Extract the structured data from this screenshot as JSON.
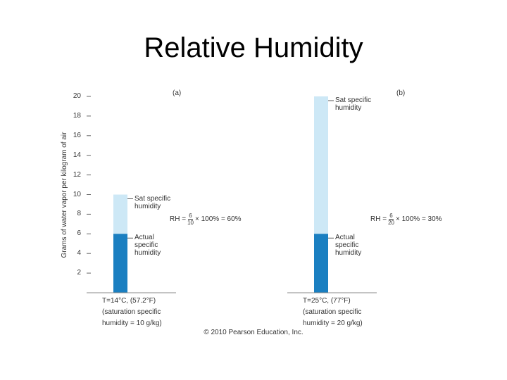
{
  "title": "Relative Humidity",
  "copyright": "© 2010 Pearson Education, Inc.",
  "chart_data": [
    {
      "type": "bar",
      "panel_label": "(a)",
      "ylabel": "Grams of water vapor per kilogram of air",
      "ylim": [
        0,
        20
      ],
      "yticks": [
        2,
        4,
        6,
        8,
        10,
        12,
        14,
        16,
        18,
        20
      ],
      "series": [
        {
          "name": "Sat specific humidity",
          "color": "#cde8f6",
          "values": [
            10
          ]
        },
        {
          "name": "Actual specific humidity",
          "color": "#1a7fc1",
          "values": [
            6
          ]
        }
      ],
      "caption": [
        "T=14°C, (57.2°F)",
        "(saturation specific",
        "humidity = 10 g/kg)"
      ],
      "rh": {
        "prefix": "RH =",
        "numerator": "6",
        "denominator": "10",
        "suffix": "× 100% = 60%"
      }
    },
    {
      "type": "bar",
      "panel_label": "(b)",
      "ylim": [
        0,
        20
      ],
      "series": [
        {
          "name": "Sat specific humidity",
          "color": "#cde8f6",
          "values": [
            20
          ]
        },
        {
          "name": "Actual specific humidity",
          "color": "#1a7fc1",
          "values": [
            6
          ]
        }
      ],
      "caption": [
        "T=25°C, (77°F)",
        "(saturation specific",
        "humidity = 20 g/kg)"
      ],
      "rh": {
        "prefix": "RH =",
        "numerator": "6",
        "denominator": "20",
        "suffix": "× 100% = 30%"
      }
    }
  ]
}
